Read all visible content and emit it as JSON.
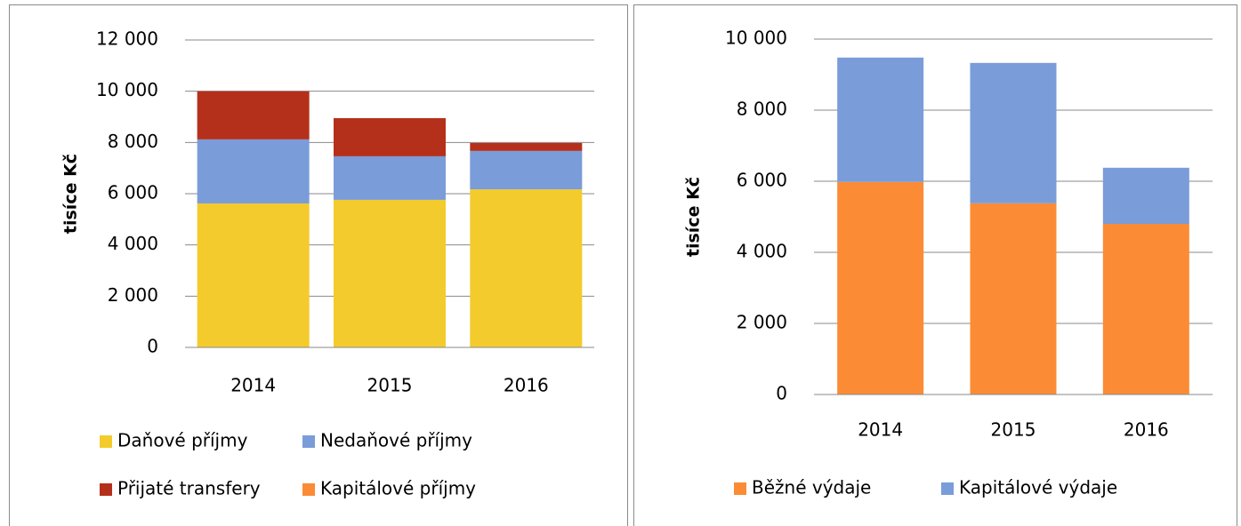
{
  "chart_data": [
    {
      "type": "bar",
      "stacked": true,
      "ylabel": "tisíce Kč",
      "categories": [
        "2014",
        "2015",
        "2016"
      ],
      "series": [
        {
          "name": "Daňové příjmy",
          "color": "#f4cb2c",
          "values": [
            5620,
            5760,
            6170
          ]
        },
        {
          "name": "Nedaňové příjmy",
          "color": "#7a9cd9",
          "values": [
            2500,
            1700,
            1500
          ]
        },
        {
          "name": "Přijaté transfery",
          "color": "#b5301a",
          "values": [
            1880,
            1490,
            310
          ]
        },
        {
          "name": "Kapitálové příjmy",
          "color": "#fb8c35",
          "values": [
            0,
            0,
            0
          ]
        }
      ],
      "ylim": [
        0,
        12000
      ],
      "yticks": [
        0,
        {
          "value": 2000,
          "label": "2 000"
        },
        {
          "value": 4000,
          "label": "4 000"
        },
        {
          "value": 6000,
          "label": "6 000"
        },
        {
          "value": 8000,
          "label": "8 000"
        },
        {
          "value": 10000,
          "label": "10 000"
        },
        {
          "value": 12000,
          "label": "12 000"
        }
      ],
      "grid": true,
      "legend": "bottom"
    },
    {
      "type": "bar",
      "stacked": true,
      "ylabel": "tisíce Kč",
      "categories": [
        "2014",
        "2015",
        "2016"
      ],
      "series": [
        {
          "name": "Běžné výdaje",
          "color": "#fb8c35",
          "values": [
            5980,
            5380,
            4800
          ]
        },
        {
          "name": "Kapitálové výdaje",
          "color": "#7a9cd9",
          "values": [
            3500,
            3950,
            1580
          ]
        }
      ],
      "ylim": [
        0,
        10000
      ],
      "yticks": [
        0,
        {
          "value": 2000,
          "label": "2 000"
        },
        {
          "value": 4000,
          "label": "4 000"
        },
        {
          "value": 6000,
          "label": "6 000"
        },
        {
          "value": 8000,
          "label": "8 000"
        },
        {
          "value": 10000,
          "label": "10 000"
        }
      ],
      "grid": true,
      "legend": "bottom"
    }
  ]
}
